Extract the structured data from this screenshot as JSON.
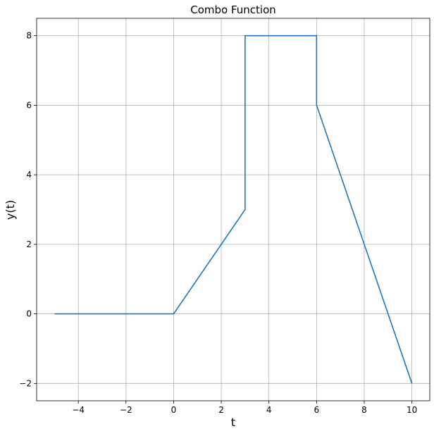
{
  "chart_data": {
    "type": "line",
    "title": "Combo Function",
    "xlabel": "t",
    "ylabel": "y(t)",
    "xlim": [
      -5.75,
      10.75
    ],
    "ylim": [
      -2.5,
      8.5
    ],
    "xticks": [
      -4,
      -2,
      0,
      2,
      4,
      6,
      8,
      10
    ],
    "yticks": [
      -2,
      0,
      2,
      4,
      6,
      8
    ],
    "xtick_labels": [
      "−4",
      "−2",
      "0",
      "2",
      "4",
      "6",
      "8",
      "10"
    ],
    "ytick_labels": [
      "−2",
      "0",
      "2",
      "4",
      "6",
      "8"
    ],
    "grid": true,
    "series": [
      {
        "color": "#1f77b4",
        "x": [
          -5,
          0,
          3,
          3,
          6,
          6,
          10
        ],
        "y": [
          0,
          0,
          3,
          8,
          8,
          6,
          -2
        ]
      }
    ]
  }
}
